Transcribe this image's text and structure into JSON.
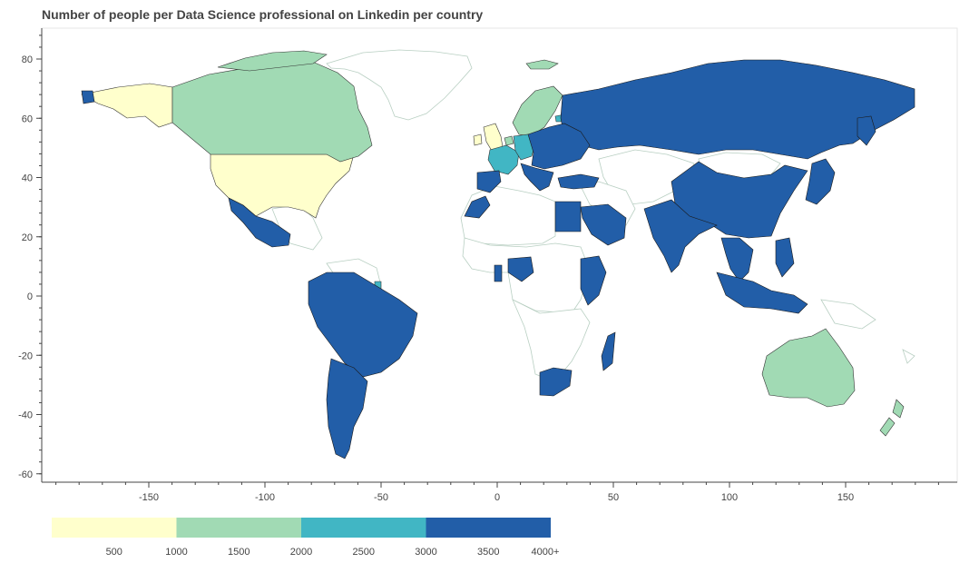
{
  "title": "Number of people per Data Science professional on Linkedin per country",
  "colors": {
    "c1": "#ffffcc",
    "c2": "#a1dab4",
    "c3": "#41b6c4",
    "c4": "#225ea8",
    "nodata": "#ffffff",
    "border": "#333333",
    "axis": "#444444"
  },
  "chart_data": {
    "type": "choropleth",
    "title": "Number of people per Data Science professional on Linkedin per country",
    "x_ticks": [
      "-150",
      "-100",
      "-50",
      "0",
      "50",
      "100",
      "150"
    ],
    "y_ticks": [
      "80",
      "60",
      "40",
      "20",
      "0",
      "-20",
      "-40",
      "-60"
    ],
    "xlim": [
      -200,
      200
    ],
    "ylim": [
      -62,
      90
    ],
    "colorbar": {
      "ticks": [
        "500",
        "1000",
        "1500",
        "2000",
        "2500",
        "3000",
        "3500",
        "4000+"
      ],
      "bins": [
        {
          "range": "0-1000",
          "color": "#ffffcc"
        },
        {
          "range": "1000-2000",
          "color": "#a1dab4"
        },
        {
          "range": "2000-3000",
          "color": "#41b6c4"
        },
        {
          "range": "3000-4000+",
          "color": "#225ea8"
        }
      ]
    },
    "countries": [
      {
        "name": "United States",
        "bin": "0-1000"
      },
      {
        "name": "United Kingdom",
        "bin": "0-1000"
      },
      {
        "name": "Ireland",
        "bin": "0-1000"
      },
      {
        "name": "Canada",
        "bin": "1000-2000"
      },
      {
        "name": "Australia",
        "bin": "1000-2000"
      },
      {
        "name": "New Zealand",
        "bin": "1000-2000"
      },
      {
        "name": "Sweden",
        "bin": "1000-2000"
      },
      {
        "name": "Norway",
        "bin": "1000-2000"
      },
      {
        "name": "Netherlands",
        "bin": "1000-2000"
      },
      {
        "name": "Iceland",
        "bin": "1000-2000"
      },
      {
        "name": "France",
        "bin": "2000-3000"
      },
      {
        "name": "Germany",
        "bin": "2000-3000"
      },
      {
        "name": "Switzerland",
        "bin": "2000-3000"
      },
      {
        "name": "Estonia",
        "bin": "2000-3000"
      },
      {
        "name": "Russia",
        "bin": "3000-4000+"
      },
      {
        "name": "China",
        "bin": "3000-4000+"
      },
      {
        "name": "India",
        "bin": "3000-4000+"
      },
      {
        "name": "Brazil",
        "bin": "3000-4000+"
      },
      {
        "name": "Mexico",
        "bin": "3000-4000+"
      },
      {
        "name": "Argentina",
        "bin": "3000-4000+"
      },
      {
        "name": "South Africa",
        "bin": "3000-4000+"
      },
      {
        "name": "Japan",
        "bin": "3000-4000+"
      },
      {
        "name": "Indonesia",
        "bin": "3000-4000+"
      },
      {
        "name": "Egypt",
        "bin": "3000-4000+"
      },
      {
        "name": "Saudi Arabia",
        "bin": "3000-4000+"
      },
      {
        "name": "Spain",
        "bin": "3000-4000+"
      },
      {
        "name": "Italy",
        "bin": "3000-4000+"
      }
    ]
  }
}
